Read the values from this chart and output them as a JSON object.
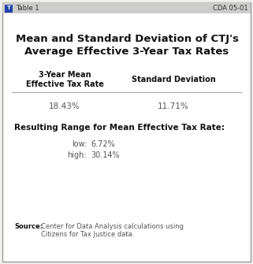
{
  "title_line1": "Mean and Standard Deviation of CTJ's",
  "title_line2": "Average Effective 3-Year Tax Rates",
  "col1_header_line1": "3-Year Mean",
  "col1_header_line2": "Effective Tax Rate",
  "col2_header": "Standard Deviation",
  "col1_value": "18.43%",
  "col2_value": "11.71%",
  "range_label": "Resulting Range for Mean Effective Tax Rate:",
  "low_label": "low:",
  "low_value": "6.72%",
  "high_label": "high:",
  "high_value": "30.14%",
  "source_bold": "Source:",
  "source_text": "Center for Data Analysis calculations using\nCitizens for Tax Justice data.",
  "header_left": "Table 1",
  "header_right": "CDA 05-01",
  "bg_color": "#f0f0ec",
  "border_color": "#999999",
  "header_bg": "#cccccc",
  "text_color": "#111111",
  "value_color": "#555555",
  "icon_color": "#2244aa"
}
